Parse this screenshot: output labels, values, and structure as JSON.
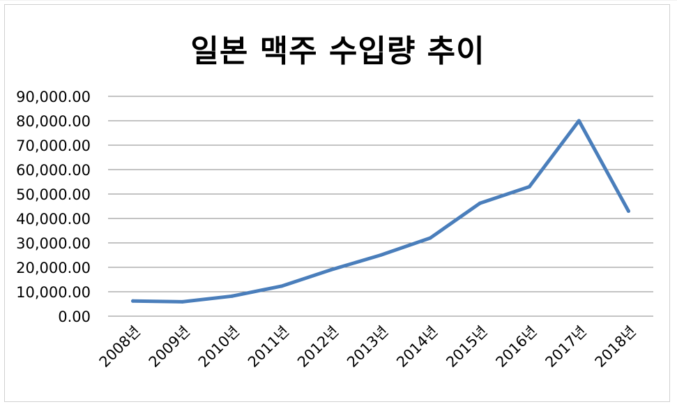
{
  "chart_data": {
    "type": "line",
    "title": "일본 맥주 수입량 추이",
    "xlabel": "",
    "ylabel": "",
    "categories": [
      "2008년",
      "2009년",
      "2010년",
      "2011년",
      "2012년",
      "2013년",
      "2014년",
      "2015년",
      "2016년",
      "2017년",
      "2018년"
    ],
    "series": [
      {
        "values": [
          6200,
          5900,
          8200,
          12300,
          19000,
          25000,
          32000,
          46200,
          53000,
          80000,
          43000
        ]
      }
    ],
    "ylim": [
      0,
      90000
    ],
    "yticks": [
      "0.00",
      "10,000.00",
      "20,000.00",
      "30,000.00",
      "40,000.00",
      "50,000.00",
      "60,000.00",
      "70,000.00",
      "80,000.00",
      "90,000.00"
    ],
    "grid": true,
    "legend": "none",
    "line_color": "#4A7EBB",
    "grid_color": "#878787"
  }
}
